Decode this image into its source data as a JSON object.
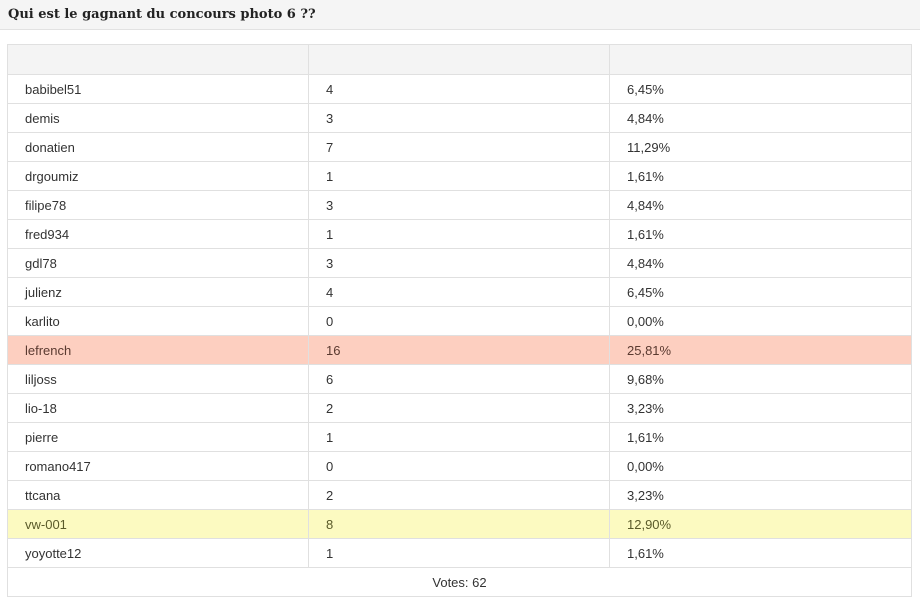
{
  "poll": {
    "title": "Qui est le gagnant du concours photo 6 ??"
  },
  "table": {
    "headers": [
      "",
      "",
      ""
    ],
    "rows": [
      {
        "name": "babibel51",
        "votes": "4",
        "percent": "6,45%",
        "highlight": "none"
      },
      {
        "name": "demis",
        "votes": "3",
        "percent": "4,84%",
        "highlight": "none"
      },
      {
        "name": "donatien",
        "votes": "7",
        "percent": "11,29%",
        "highlight": "none"
      },
      {
        "name": "drgoumiz",
        "votes": "1",
        "percent": "1,61%",
        "highlight": "none"
      },
      {
        "name": "filipe78",
        "votes": "3",
        "percent": "4,84%",
        "highlight": "none"
      },
      {
        "name": "fred934",
        "votes": "1",
        "percent": "1,61%",
        "highlight": "none"
      },
      {
        "name": "gdl78",
        "votes": "3",
        "percent": "4,84%",
        "highlight": "none"
      },
      {
        "name": "julienz",
        "votes": "4",
        "percent": "6,45%",
        "highlight": "none"
      },
      {
        "name": "karlito",
        "votes": "0",
        "percent": "0,00%",
        "highlight": "none"
      },
      {
        "name": "lefrench",
        "votes": "16",
        "percent": "25,81%",
        "highlight": "winner"
      },
      {
        "name": "liljoss",
        "votes": "6",
        "percent": "9,68%",
        "highlight": "none"
      },
      {
        "name": "lio-18",
        "votes": "2",
        "percent": "3,23%",
        "highlight": "none"
      },
      {
        "name": "pierre",
        "votes": "1",
        "percent": "1,61%",
        "highlight": "none"
      },
      {
        "name": "romano417",
        "votes": "0",
        "percent": "0,00%",
        "highlight": "none"
      },
      {
        "name": "ttcana",
        "votes": "2",
        "percent": "3,23%",
        "highlight": "none"
      },
      {
        "name": "vw-001",
        "votes": "8",
        "percent": "12,90%",
        "highlight": "runner"
      },
      {
        "name": "yoyotte12",
        "votes": "1",
        "percent": "1,61%",
        "highlight": "none"
      }
    ],
    "footer": "Votes: 62"
  },
  "colors": {
    "winner_row": "#fdcfc0",
    "runner_row": "#fcfac1",
    "header_bg": "#f4f4f4",
    "border": "#e0e0e0"
  }
}
